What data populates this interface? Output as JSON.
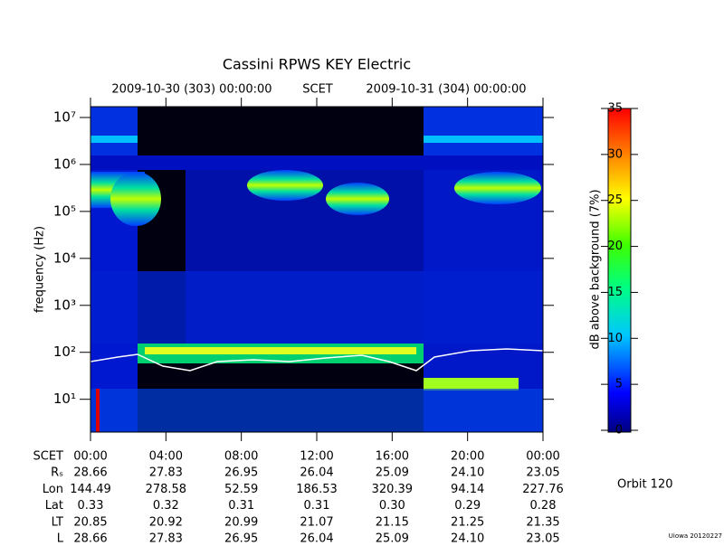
{
  "chart_data": {
    "type": "spectrogram",
    "title": "Cassini RPWS KEY Electric",
    "top_labels": [
      "2009-10-30 (303) 00:00:00",
      "SCET",
      "2009-10-31 (304) 00:00:00"
    ],
    "y_label": "frequency (Hz)",
    "log_scale": true,
    "ylim": [
      2,
      17000000
    ],
    "yticks": [
      {
        "value": 10,
        "label": "10¹"
      },
      {
        "value": 100,
        "label": "10²"
      },
      {
        "value": 1000,
        "label": "10³"
      },
      {
        "value": 10000,
        "label": "10⁴"
      },
      {
        "value": 100000,
        "label": "10⁵"
      },
      {
        "value": 1000000,
        "label": "10⁶"
      },
      {
        "value": 10000000,
        "label": "10⁷"
      }
    ],
    "xlim": [
      0,
      24
    ],
    "xticks": [
      {
        "value": 0,
        "label": "00:00"
      },
      {
        "value": 4,
        "label": "04:00"
      },
      {
        "value": 8,
        "label": "08:00"
      },
      {
        "value": 12,
        "label": "12:00"
      },
      {
        "value": 16,
        "label": "16:00"
      },
      {
        "value": 20,
        "label": "20:00"
      },
      {
        "value": 24,
        "label": "00:00"
      }
    ],
    "x_row_label": "SCET",
    "ephemeris": [
      {
        "name": "Rₛ",
        "values": [
          "28.66",
          "27.83",
          "26.95",
          "26.04",
          "25.09",
          "24.10",
          "23.05"
        ]
      },
      {
        "name": "Lon",
        "values": [
          "144.49",
          "278.58",
          "52.59",
          "186.53",
          "320.39",
          "94.14",
          "227.76"
        ]
      },
      {
        "name": "Lat",
        "values": [
          "0.33",
          "0.32",
          "0.31",
          "0.31",
          "0.30",
          "0.29",
          "0.28"
        ]
      },
      {
        "name": "LT",
        "values": [
          "20.85",
          "20.92",
          "20.99",
          "21.07",
          "21.15",
          "21.25",
          "21.35"
        ]
      },
      {
        "name": "L",
        "values": [
          "28.66",
          "27.83",
          "26.95",
          "26.04",
          "25.09",
          "24.10",
          "23.05"
        ]
      }
    ],
    "colorbar": {
      "label": "dB above background (7%)",
      "lim": [
        0,
        35
      ],
      "ticks": [
        0,
        5,
        10,
        15,
        20,
        25,
        30,
        35
      ]
    },
    "annotation": "Orbit 120",
    "credit": "Uiowa 20120227"
  }
}
